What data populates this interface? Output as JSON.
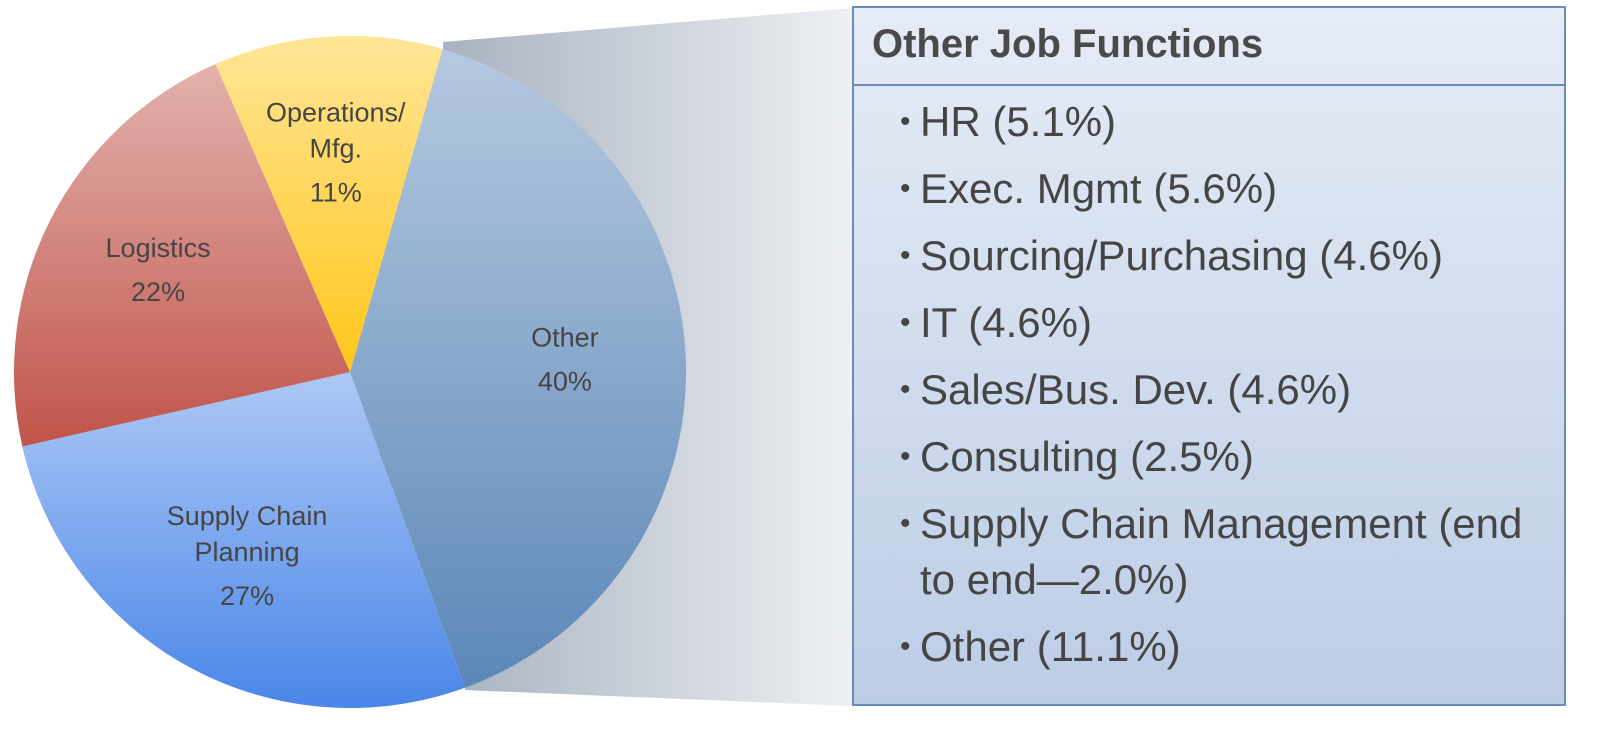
{
  "chart_data": {
    "type": "pie",
    "categories": [
      "Other",
      "Supply Chain Planning",
      "Logistics",
      "Operations/ Mfg."
    ],
    "values": [
      40,
      27,
      22,
      11
    ],
    "value_labels": [
      "40%",
      "27%",
      "22%",
      "11%"
    ],
    "colors": [
      "#5b87b8",
      "#4a86e8",
      "#c0544a",
      "#ffc619"
    ],
    "callout": {
      "title": "Other Job Functions",
      "items": [
        "HR (5.1%)",
        "Exec. Mgmt (5.6%)",
        "Sourcing/Purchasing (4.6%)",
        "IT (4.6%)",
        "Sales/Bus. Dev. (4.6%)",
        "Consulting (2.5%)",
        "Supply Chain Management (end to end—2.0%)",
        "Other (11.1%)"
      ]
    }
  }
}
